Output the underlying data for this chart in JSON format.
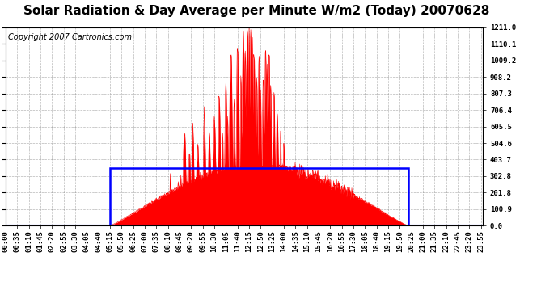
{
  "title": "Solar Radiation & Day Average per Minute W/m2 (Today) 20070628",
  "copyright": "Copyright 2007 Cartronics.com",
  "background_color": "#ffffff",
  "plot_bg_color": "#ffffff",
  "y_ticks": [
    0.0,
    100.9,
    201.8,
    302.8,
    403.7,
    504.6,
    605.5,
    706.4,
    807.3,
    908.2,
    1009.2,
    1110.1,
    1211.0
  ],
  "ymax": 1211.0,
  "ymin": 0.0,
  "x_tick_labels": [
    "00:00",
    "00:35",
    "01:10",
    "01:45",
    "02:20",
    "02:55",
    "03:30",
    "04:05",
    "04:40",
    "05:15",
    "05:50",
    "06:25",
    "07:00",
    "07:35",
    "08:10",
    "08:45",
    "09:20",
    "09:55",
    "10:30",
    "11:05",
    "11:40",
    "12:15",
    "12:50",
    "13:25",
    "14:00",
    "14:35",
    "15:10",
    "15:45",
    "16:20",
    "16:55",
    "17:30",
    "18:05",
    "18:40",
    "19:15",
    "19:50",
    "20:25",
    "21:00",
    "21:35",
    "22:10",
    "22:45",
    "23:20",
    "23:55"
  ],
  "fill_color": "#ff0000",
  "avg_box_color": "#0000ff",
  "grid_color": "#888888",
  "title_fontsize": 11,
  "copyright_fontsize": 7,
  "tick_fontsize": 6.5,
  "avg_value": 352.0,
  "sunrise_min": 315,
  "sunset_min": 1215,
  "total_minutes": 1440
}
